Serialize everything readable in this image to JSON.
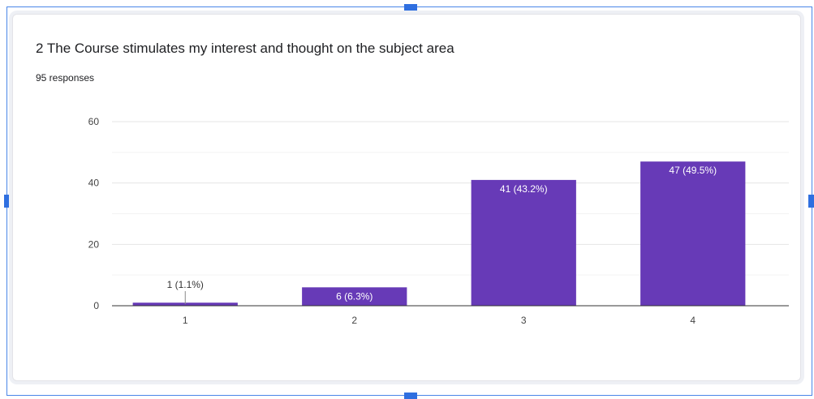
{
  "card": {
    "title": "2 The Course stimulates my interest and thought on the subject area",
    "responses": "95 responses"
  },
  "colors": {
    "bar": "#673ab7",
    "frame": "#4a86e8"
  },
  "chart_data": {
    "type": "bar",
    "categories": [
      "1",
      "2",
      "3",
      "4"
    ],
    "values": [
      1,
      6,
      41,
      47
    ],
    "labels": [
      "1 (1.1%)",
      "6 (6.3%)",
      "41 (43.2%)",
      "47 (49.5%)"
    ],
    "title": "2 The Course stimulates my interest and thought on the subject area",
    "xlabel": "",
    "ylabel": "",
    "ylim": [
      0,
      60
    ],
    "yticks": [
      0,
      20,
      40,
      60
    ],
    "grid": true,
    "legend": "none"
  }
}
